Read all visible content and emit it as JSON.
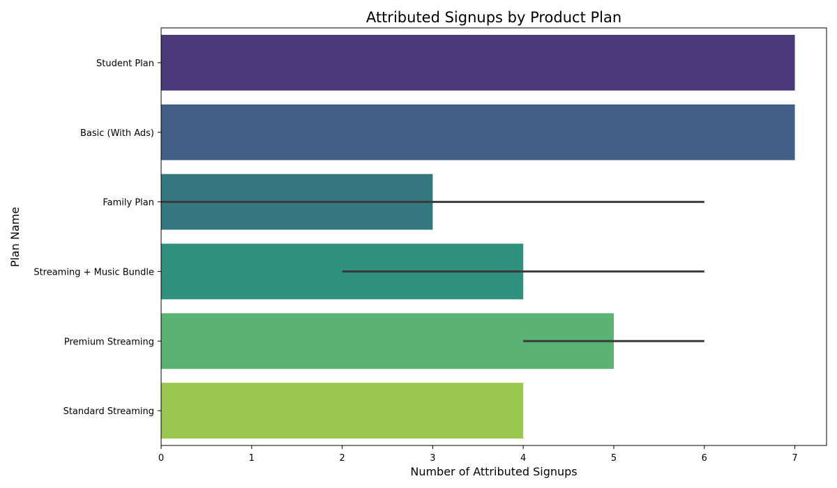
{
  "chart_data": {
    "type": "bar",
    "orientation": "horizontal",
    "title": "Attributed Signups by Product Plan",
    "xlabel": "Number of Attributed Signups",
    "ylabel": "Plan Name",
    "xlim": [
      0,
      7.35
    ],
    "x_ticks": [
      0,
      1,
      2,
      3,
      4,
      5,
      6,
      7
    ],
    "grid": false,
    "categories": [
      "Student Plan",
      "Basic (With Ads)",
      "Family Plan",
      "Streaming + Music Bundle",
      "Premium Streaming",
      "Standard Streaming"
    ],
    "values": [
      7,
      7,
      3,
      4,
      5,
      4
    ],
    "error_bars": [
      null,
      null,
      [
        0,
        6
      ],
      [
        2,
        6
      ],
      [
        4,
        6
      ],
      null
    ],
    "colors": [
      "#4a3a7a",
      "#415e85",
      "#35777f",
      "#30917e",
      "#5ab273",
      "#9ac74f"
    ],
    "error_bar_color": "#3a3a3a"
  }
}
